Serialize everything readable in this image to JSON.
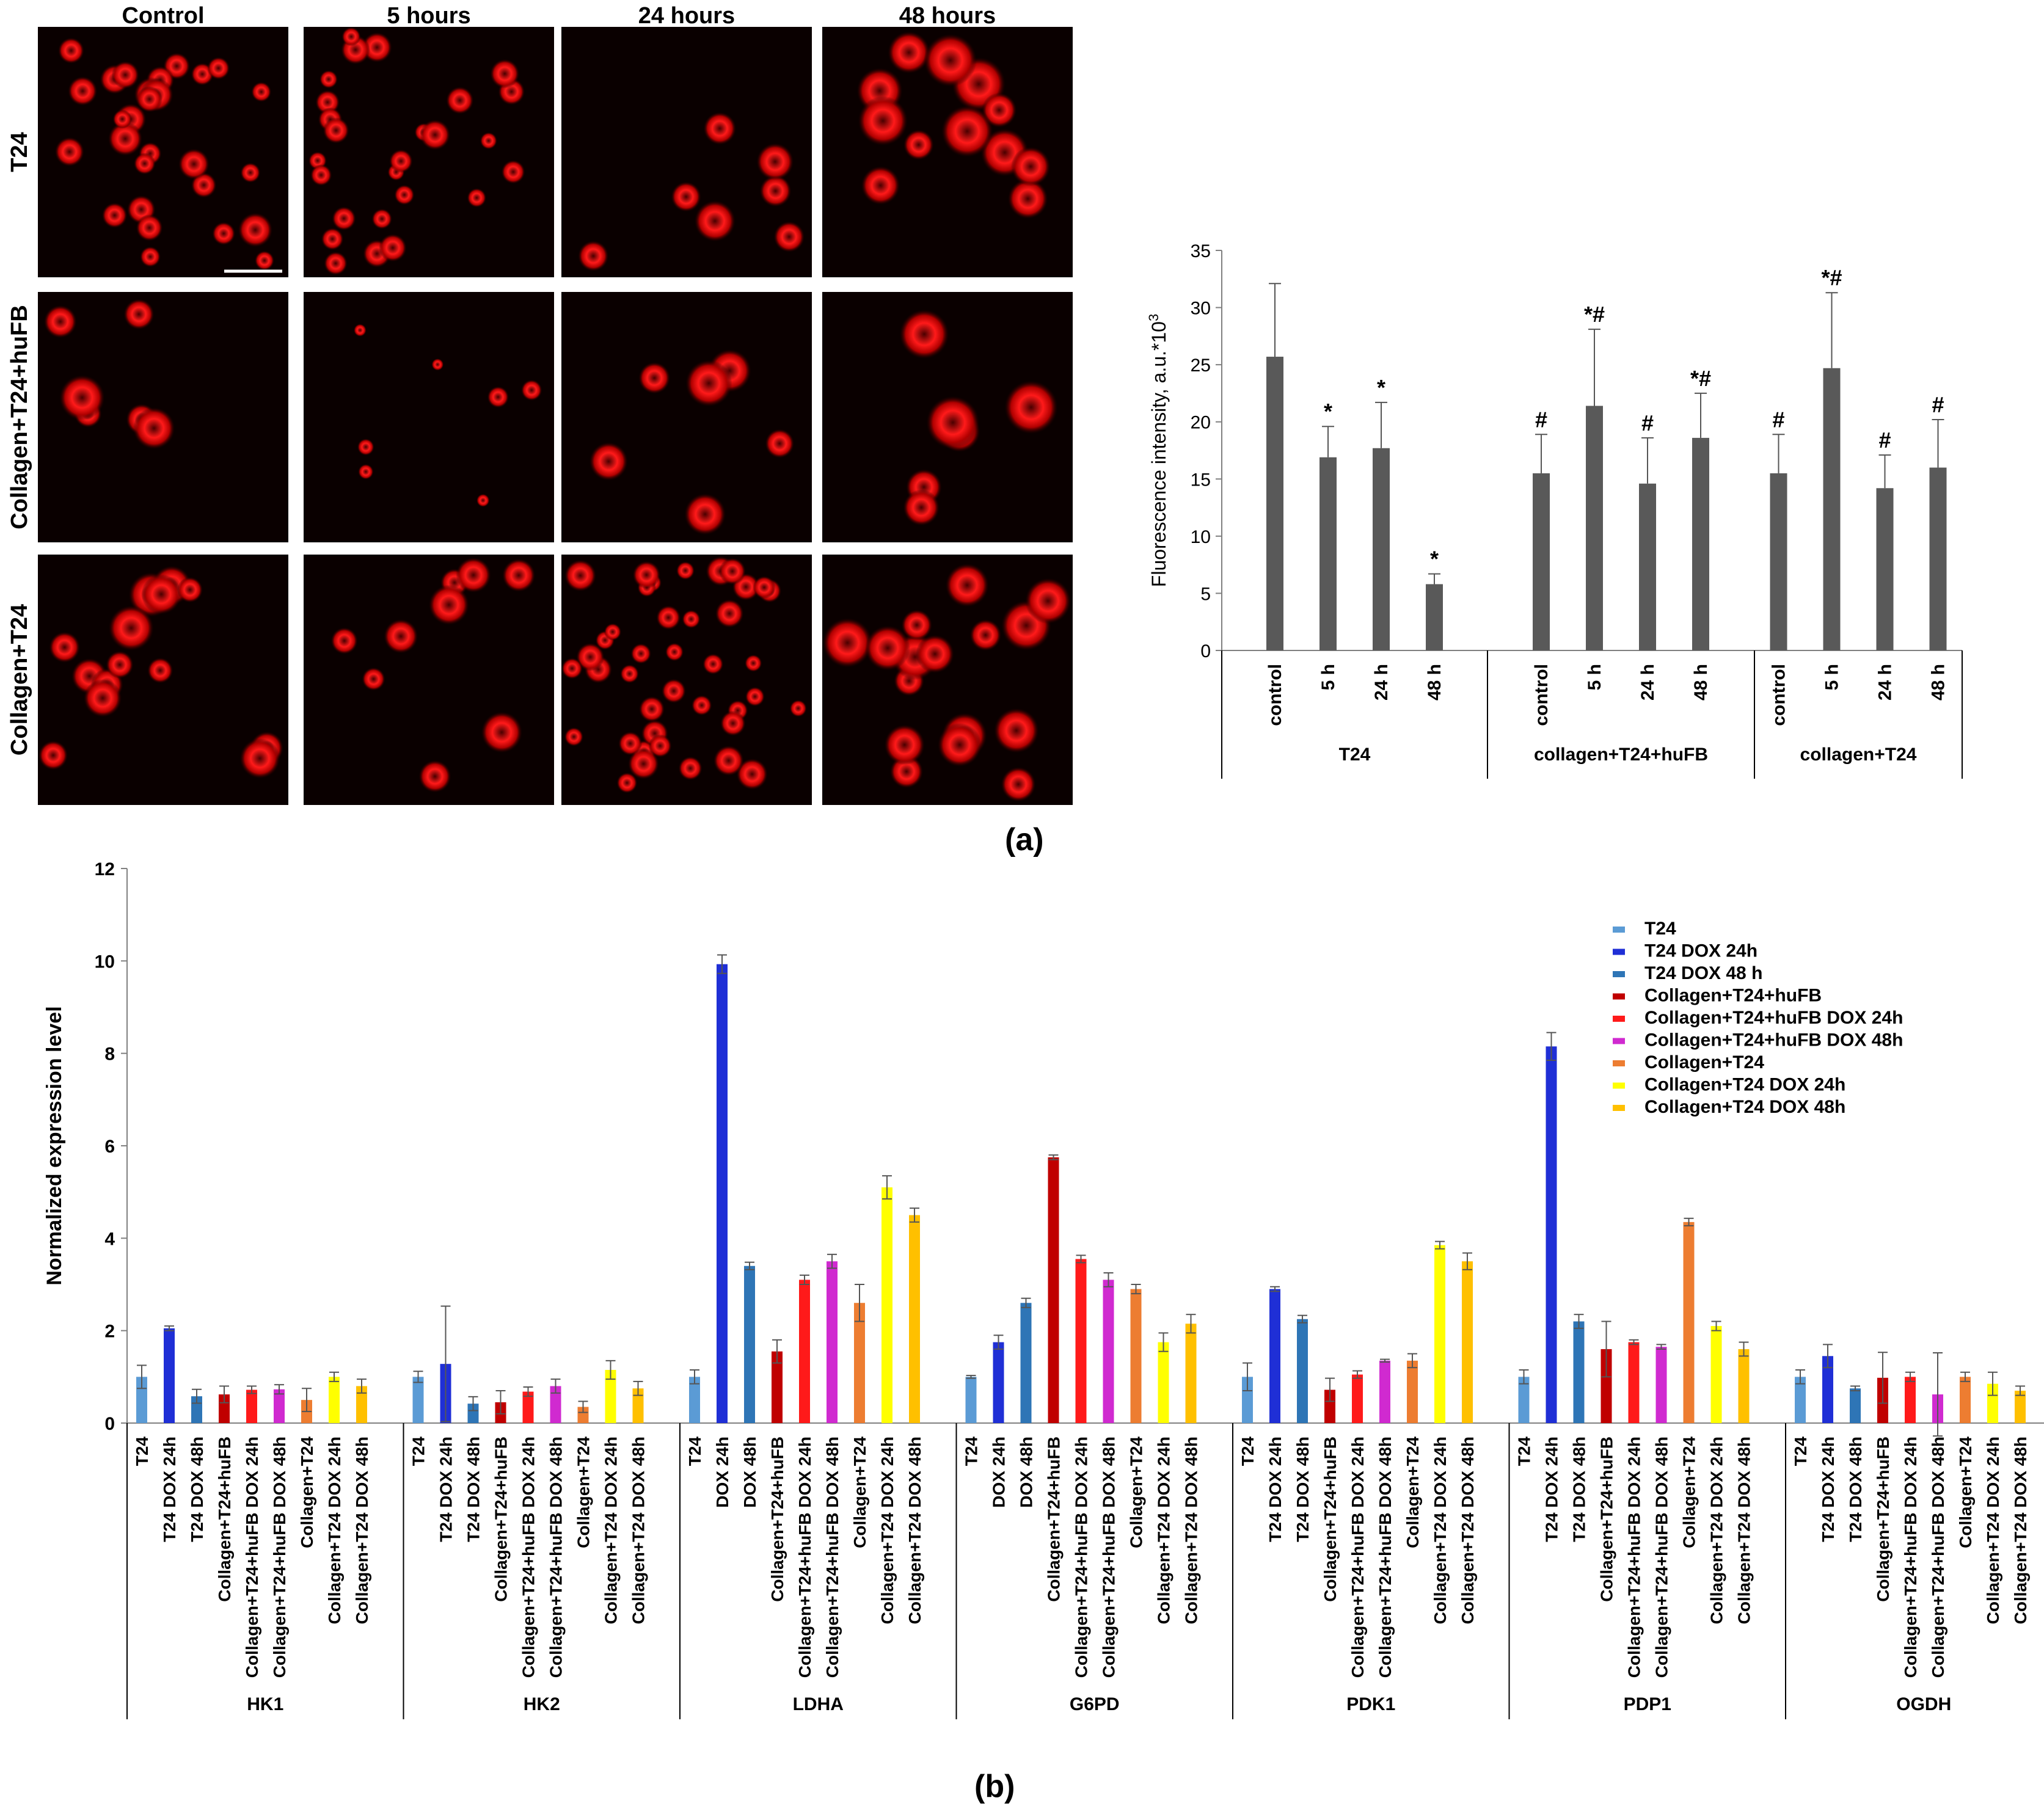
{
  "micrographs": {
    "columns": [
      "Control",
      "5 hours",
      "24 hours",
      "48 hours"
    ],
    "rows": [
      "T24",
      "Collagen+T24+huFB",
      "Collagen+T24"
    ],
    "image_color": "#ff1a1a"
  },
  "panel_labels": {
    "a": "(a)",
    "b": "(b)"
  },
  "chart_data": [
    {
      "type": "bar",
      "ylabel": "Fluorescence intensity, a.u.*10³",
      "ylabel_main": "Fluorescence intensity, a.u.*10",
      "ylabel_sup": "3",
      "ylim": [
        0,
        35
      ],
      "yticks": [
        0,
        5,
        10,
        15,
        20,
        25,
        30,
        35
      ],
      "bar_color": "#595959",
      "groups": [
        {
          "name": "T24",
          "categories": [
            "control",
            "5 h",
            "24 h",
            "48 h"
          ],
          "values": [
            25.7,
            16.9,
            17.7,
            5.8
          ],
          "errors": [
            6.4,
            2.7,
            4.0,
            0.9
          ],
          "annotations": [
            "",
            "*",
            "*",
            "*"
          ]
        },
        {
          "name": "collagen+T24+huFB",
          "categories": [
            "control",
            "5 h",
            "24 h",
            "48 h"
          ],
          "values": [
            15.5,
            21.4,
            14.6,
            18.6
          ],
          "errors": [
            3.4,
            6.7,
            4.0,
            3.9
          ],
          "annotations": [
            "#",
            "*#",
            "#",
            "*#"
          ]
        },
        {
          "name": "collagen+T24",
          "categories": [
            "control",
            "5 h",
            "24 h",
            "48 h"
          ],
          "values": [
            15.5,
            24.7,
            14.2,
            16.0
          ],
          "errors": [
            3.4,
            6.6,
            2.9,
            4.2
          ],
          "annotations": [
            "#",
            "*#",
            "#",
            "#"
          ]
        }
      ]
    },
    {
      "type": "bar",
      "ylabel": "Normalized expression level",
      "ylim": [
        0,
        12
      ],
      "yticks": [
        0,
        2,
        4,
        6,
        8,
        10,
        12
      ],
      "series": [
        {
          "name": "T24",
          "color": "#5b9bd5"
        },
        {
          "name": "T24 DOX 24h",
          "color": "#1f2fd6"
        },
        {
          "name": "T24 DOX 48 h",
          "color": "#2e75b6"
        },
        {
          "name": "Collagen+T24+huFB",
          "color": "#c00000"
        },
        {
          "name": "Collagen+T24+huFB DOX 24h",
          "color": "#ff1a1a"
        },
        {
          "name": "Collagen+T24+huFB DOX 48h",
          "color": "#d02ad0"
        },
        {
          "name": "Collagen+T24",
          "color": "#ed7d31"
        },
        {
          "name": "Collagen+T24 DOX 24h",
          "color": "#ffff00"
        },
        {
          "name": "Collagen+T24 DOX 48h",
          "color": "#ffc000"
        }
      ],
      "groups": [
        {
          "name": "HK1",
          "categories": [
            "T24",
            "T24 DOX 24h",
            "T24 DOX 48h",
            "Collagen+T24+huFB",
            "Collagen+T24+huFB DOX 24h",
            "Collagen+T24+huFB DOX 48h",
            "Collagen+T24",
            "Collagen+T24  DOX 24h",
            "Collagen+T24  DOX 48h"
          ],
          "values": [
            1.0,
            2.05,
            0.58,
            0.62,
            0.72,
            0.73,
            0.5,
            1.0,
            0.8
          ],
          "errors": [
            0.25,
            0.05,
            0.15,
            0.18,
            0.08,
            0.1,
            0.25,
            0.1,
            0.15
          ]
        },
        {
          "name": "HK2",
          "categories": [
            "T24",
            "T24 DOX 24h",
            "T24 DOX 48h",
            "Collagen+T24+huFB",
            "Collagen+T24+huFB DOX 24h",
            "Collagen+T24+huFB DOX 48h",
            "Collagen+T24",
            "Collagen+T24  DOX 24h",
            "Collagen+T24  DOX 48h"
          ],
          "values": [
            1.0,
            1.28,
            0.42,
            0.45,
            0.68,
            0.8,
            0.35,
            1.15,
            0.75
          ],
          "errors": [
            0.12,
            1.25,
            0.15,
            0.25,
            0.1,
            0.15,
            0.12,
            0.2,
            0.15
          ]
        },
        {
          "name": "LDHA",
          "categories": [
            "T24",
            "DOX 24h",
            "DOX 48h",
            "Collagen+T24+huFB",
            "Collagen+T24+huFB DOX 24h",
            "Collagen+T24+huFB DOX 48h",
            "Collagen+T24",
            "Collagen+T24  DOX 24h",
            "Collagen+T24  DOX 48h"
          ],
          "values": [
            1.0,
            9.93,
            3.4,
            1.55,
            3.1,
            3.5,
            2.6,
            5.1,
            4.5
          ],
          "errors": [
            0.15,
            0.2,
            0.08,
            0.25,
            0.1,
            0.15,
            0.4,
            0.25,
            0.15
          ]
        },
        {
          "name": "G6PD",
          "categories": [
            "T24",
            "DOX 24h",
            "DOX 48h",
            "Collagen+T24+huFB",
            "Collagen+T24+huFB DOX 24h",
            "Collagen+T24+huFB DOX 48h",
            "Collagen+T24",
            "Collagen+T24  DOX 24h",
            "Collagen+T24  DOX 48h"
          ],
          "values": [
            1.0,
            1.75,
            2.6,
            5.75,
            3.55,
            3.1,
            2.9,
            1.75,
            2.15
          ],
          "errors": [
            0.03,
            0.15,
            0.1,
            0.05,
            0.08,
            0.15,
            0.1,
            0.2,
            0.2
          ]
        },
        {
          "name": "PDK1",
          "categories": [
            "T24",
            "T24 DOX 24h",
            "T24 DOX 48h",
            "Collagen+T24+huFB",
            "Collagen+T24+huFB DOX 24h",
            "Collagen+T24+huFB DOX 48h",
            "Collagen+T24",
            "Collagen+T24 DOX 24h",
            "Collagen+T24  DOX 48h"
          ],
          "values": [
            1.0,
            2.9,
            2.25,
            0.72,
            1.05,
            1.35,
            1.35,
            3.85,
            3.5
          ],
          "errors": [
            0.3,
            0.05,
            0.08,
            0.25,
            0.08,
            0.03,
            0.15,
            0.08,
            0.18
          ]
        },
        {
          "name": "PDP1",
          "categories": [
            "T24",
            "T24 DOX 24h",
            "T24 DOX 48h",
            "Collagen+T24+huFB",
            "Collagen+T24+huFB DOX 24h",
            "Collagen+T24+huFB DOX 48h",
            "Collagen+T24",
            "Collagen+T24  DOX 24h",
            "Collagen+T24  DOX 48h"
          ],
          "values": [
            1.0,
            8.15,
            2.2,
            1.6,
            1.75,
            1.65,
            4.35,
            2.1,
            1.6
          ],
          "errors": [
            0.15,
            0.3,
            0.15,
            0.6,
            0.05,
            0.05,
            0.08,
            0.1,
            0.15
          ]
        },
        {
          "name": "OGDH",
          "categories": [
            "T24",
            "T24 DOX 24h",
            "T24 DOX 48h",
            "Collagen+T24+huFB",
            "Collagen+T24+huFB DOX 24h",
            "Collagen+T24+huFB DOX 48h",
            "Collagen+T24",
            "Collagen+T24  DOX 24h",
            "Collagen+T24  DOX 48h"
          ],
          "values": [
            1.0,
            1.45,
            0.75,
            0.98,
            1.0,
            0.62,
            1.0,
            0.85,
            0.7
          ],
          "errors": [
            0.15,
            0.25,
            0.05,
            0.55,
            0.1,
            0.9,
            0.1,
            0.25,
            0.1
          ]
        }
      ]
    }
  ]
}
